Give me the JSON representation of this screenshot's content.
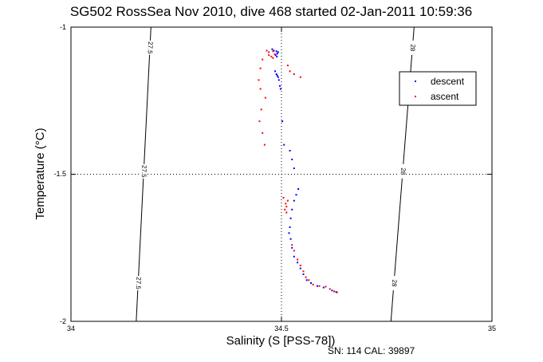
{
  "chart_data": {
    "type": "scatter",
    "title": "SG502 RossSea Nov 2010, dive 468 started 02-Jan-2011 10:59:36",
    "xlabel": "Salinity (S [PSS-78])",
    "ylabel": "Temperature (°C)",
    "xlim": [
      34,
      35
    ],
    "ylim": [
      -2,
      -1
    ],
    "xticks": [
      "34",
      "34.5",
      "35"
    ],
    "yticks": [
      "-1",
      "-1.5",
      "-2"
    ],
    "grid": "dotted center lines",
    "legend_position": "top-right",
    "footer": "SN: 114  CAL: 39897",
    "colors": {
      "descent": "#0000ff",
      "ascent": "#ff0000",
      "axis": "#000000"
    },
    "contours": [
      {
        "label": "27.5",
        "x_at_top": 34.19,
        "x_at_bottom": 34.155
      },
      {
        "label": "28",
        "x_at_top": 34.815,
        "x_at_bottom": 34.76
      }
    ],
    "series": [
      {
        "name": "descent",
        "points": [
          [
            34.478,
            -1.075
          ],
          [
            34.482,
            -1.08
          ],
          [
            34.488,
            -1.082
          ],
          [
            34.492,
            -1.085
          ],
          [
            34.49,
            -1.09
          ],
          [
            34.486,
            -1.095
          ],
          [
            34.489,
            -1.1
          ],
          [
            34.485,
            -1.15
          ],
          [
            34.488,
            -1.16
          ],
          [
            34.49,
            -1.165
          ],
          [
            34.492,
            -1.17
          ],
          [
            34.494,
            -1.18
          ],
          [
            34.496,
            -1.2
          ],
          [
            34.498,
            -1.21
          ],
          [
            34.502,
            -1.32
          ],
          [
            34.506,
            -1.4
          ],
          [
            34.52,
            -1.42
          ],
          [
            34.525,
            -1.45
          ],
          [
            34.53,
            -1.48
          ],
          [
            34.54,
            -1.55
          ],
          [
            34.535,
            -1.57
          ],
          [
            34.53,
            -1.59
          ],
          [
            34.525,
            -1.62
          ],
          [
            34.522,
            -1.65
          ],
          [
            34.52,
            -1.68
          ],
          [
            34.518,
            -1.7
          ],
          [
            34.522,
            -1.72
          ],
          [
            34.525,
            -1.75
          ],
          [
            34.53,
            -1.78
          ],
          [
            34.538,
            -1.8
          ],
          [
            34.545,
            -1.82
          ],
          [
            34.552,
            -1.84
          ],
          [
            34.56,
            -1.86
          ],
          [
            34.57,
            -1.87
          ],
          [
            34.585,
            -1.88
          ],
          [
            34.6,
            -1.885
          ],
          [
            34.62,
            -1.895
          ],
          [
            34.63,
            -1.9
          ]
        ]
      },
      {
        "name": "ascent",
        "points": [
          [
            34.465,
            -1.08
          ],
          [
            34.47,
            -1.085
          ],
          [
            34.48,
            -1.082
          ],
          [
            34.47,
            -1.095
          ],
          [
            34.476,
            -1.1
          ],
          [
            34.484,
            -1.092
          ],
          [
            34.48,
            -1.105
          ],
          [
            34.455,
            -1.11
          ],
          [
            34.45,
            -1.14
          ],
          [
            34.446,
            -1.18
          ],
          [
            34.45,
            -1.21
          ],
          [
            34.462,
            -1.24
          ],
          [
            34.452,
            -1.28
          ],
          [
            34.448,
            -1.32
          ],
          [
            34.455,
            -1.36
          ],
          [
            34.46,
            -1.4
          ],
          [
            34.515,
            -1.13
          ],
          [
            34.52,
            -1.15
          ],
          [
            34.53,
            -1.16
          ],
          [
            34.545,
            -1.17
          ],
          [
            34.505,
            -1.58
          ],
          [
            34.51,
            -1.6
          ],
          [
            34.512,
            -1.61
          ],
          [
            34.508,
            -1.62
          ],
          [
            34.515,
            -1.59
          ],
          [
            34.512,
            -1.63
          ],
          [
            34.525,
            -1.74
          ],
          [
            34.53,
            -1.76
          ],
          [
            34.538,
            -1.79
          ],
          [
            34.545,
            -1.81
          ],
          [
            34.552,
            -1.83
          ],
          [
            34.558,
            -1.85
          ],
          [
            34.565,
            -1.86
          ],
          [
            34.575,
            -1.875
          ],
          [
            34.59,
            -1.88
          ],
          [
            34.605,
            -1.882
          ],
          [
            34.615,
            -1.89
          ],
          [
            34.625,
            -1.898
          ],
          [
            34.632,
            -1.902
          ]
        ]
      }
    ]
  }
}
